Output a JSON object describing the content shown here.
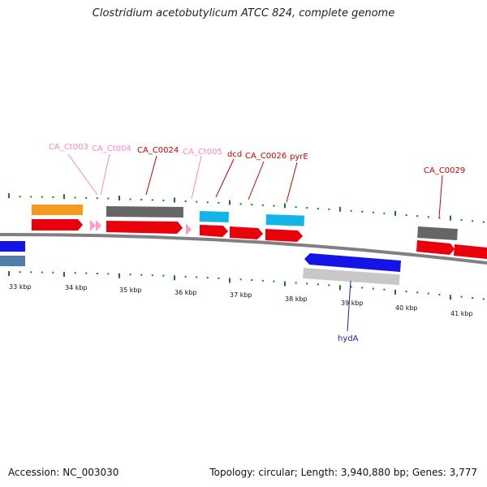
{
  "title": "Clostridium acetobutylicum ATCC 824, complete genome",
  "footer": {
    "accession": "Accession: NC_003030",
    "summary": "Topology: circular; Length: 3,940,880 bp; Genes: 3,777"
  },
  "colors": {
    "cds": "#e8000a",
    "rna_pink": "#ff9acb",
    "gene_gray": "#666666",
    "light_gray": "#c8c8c8",
    "cyan": "#14b4e6",
    "orange": "#f59a1e",
    "blue": "#1414e6",
    "steel": "#4f7fa8",
    "tick_green": "#1a7a1a",
    "backbone": "#808080",
    "label_red": "#cc0000",
    "label_pink": "#ff88bb",
    "label_blue": "#1a1aaa"
  },
  "scale_labels": [
    "33 kbp",
    "34 kbp",
    "35 kbp",
    "36 kbp",
    "37 kbp",
    "38 kbp",
    "39 kbp",
    "40 kbp",
    "41 kbp"
  ],
  "gene_labels": [
    {
      "text": "CA_Ct003",
      "color": "label_pink"
    },
    {
      "text": "CA_Ct004",
      "color": "label_pink"
    },
    {
      "text": "CA_C0024",
      "color": "label_red"
    },
    {
      "text": "CA_Ct005",
      "color": "label_pink"
    },
    {
      "text": "dcd",
      "color": "label_red"
    },
    {
      "text": "CA_C0026",
      "color": "label_red"
    },
    {
      "text": "pyrE",
      "color": "label_red"
    },
    {
      "text": "CA_C0029",
      "color": "label_red"
    },
    {
      "text": "hydA",
      "color": "label_blue"
    }
  ]
}
